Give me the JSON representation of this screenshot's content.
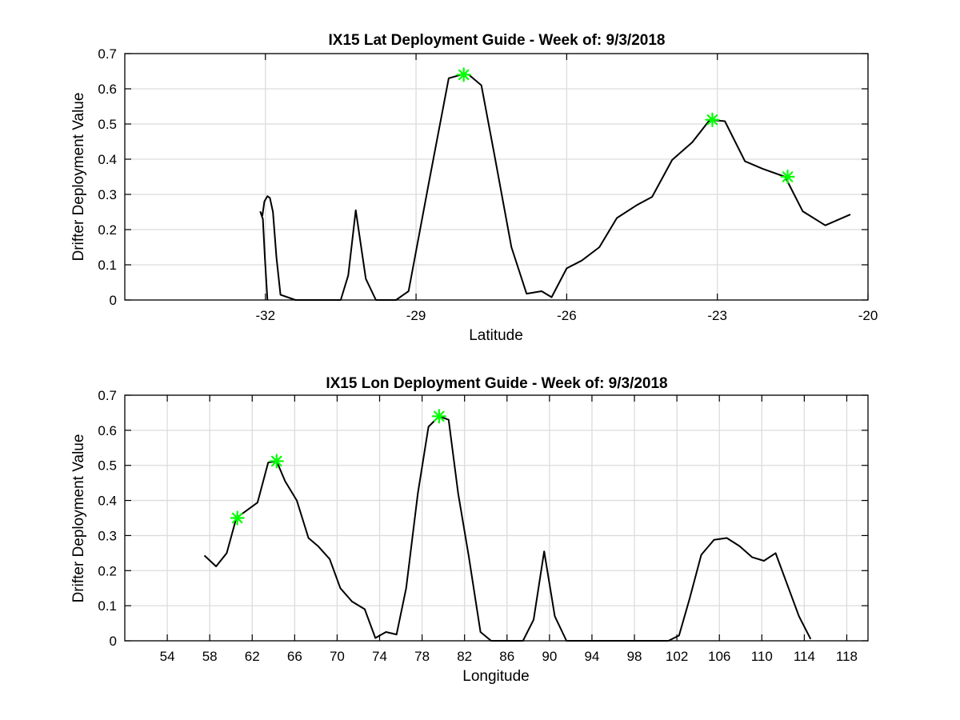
{
  "chart_data": [
    {
      "type": "line",
      "title": "IX15 Lat Deployment Guide - Week of: 9/3/2018",
      "xlabel": "Latitude",
      "ylabel": "Drifter Deployment Value",
      "xlim": [
        -34.8,
        -20
      ],
      "ylim": [
        0,
        0.7
      ],
      "xticks": [
        -32,
        -29,
        -26,
        -23,
        -20
      ],
      "xtick_labels": [
        "-32",
        "-29",
        "-26",
        "-23",
        "-20"
      ],
      "yticks": [
        0,
        0.1,
        0.2,
        0.3,
        0.4,
        0.5,
        0.6,
        0.7
      ],
      "ytick_labels": [
        "0",
        "0.1",
        "0.2",
        "0.3",
        "0.4",
        "0.5",
        "0.6",
        "0.7"
      ],
      "grid": true,
      "line_color": "#000000",
      "series": [
        {
          "x": [
            -31.96,
            -32.01,
            -32.05,
            -32.1,
            -32.06,
            -32.02,
            -31.96,
            -31.91,
            -31.85,
            -31.78,
            -31.7,
            -31.4,
            -30.9,
            -30.5,
            -30.35,
            -30.2,
            -30.0,
            -29.8,
            -29.4,
            -29.15,
            -28.75,
            -28.35,
            -28.1,
            -27.95,
            -27.7,
            -27.45,
            -27.1,
            -26.8,
            -26.5,
            -26.3,
            -26.0,
            -25.7,
            -25.35,
            -25.0,
            -24.6,
            -24.3,
            -23.9,
            -23.5,
            -23.15,
            -22.85,
            -22.45,
            -22.1,
            -21.65,
            -21.3,
            -20.85,
            -20.35
          ],
          "y": [
            0.0,
            0.12,
            0.23,
            0.25,
            0.24,
            0.28,
            0.295,
            0.29,
            0.25,
            0.12,
            0.015,
            0.0,
            0.0,
            0.0,
            0.07,
            0.255,
            0.06,
            0.0,
            0.0,
            0.025,
            0.33,
            0.63,
            0.64,
            0.64,
            0.61,
            0.42,
            0.15,
            0.018,
            0.025,
            0.008,
            0.09,
            0.112,
            0.15,
            0.233,
            0.27,
            0.293,
            0.398,
            0.448,
            0.512,
            0.508,
            0.394,
            0.373,
            0.35,
            0.252,
            0.212,
            0.243
          ]
        }
      ],
      "markers": {
        "symbol": "*",
        "color": "#00ff00",
        "points": [
          {
            "x": -28.05,
            "y": 0.64
          },
          {
            "x": -23.1,
            "y": 0.512
          },
          {
            "x": -21.6,
            "y": 0.35
          }
        ]
      }
    },
    {
      "type": "line",
      "title": "IX15 Lon Deployment Guide - Week of: 9/3/2018",
      "xlabel": "Longitude",
      "ylabel": "Drifter Deployment Value",
      "xlim": [
        50,
        120
      ],
      "ylim": [
        0,
        0.7
      ],
      "xticks": [
        54,
        58,
        62,
        66,
        70,
        74,
        78,
        82,
        86,
        90,
        94,
        98,
        102,
        106,
        110,
        114,
        118
      ],
      "xtick_labels": [
        "54",
        "58",
        "62",
        "66",
        "70",
        "74",
        "78",
        "82",
        "86",
        "90",
        "94",
        "98",
        "102",
        "106",
        "110",
        "114",
        "118"
      ],
      "yticks": [
        0,
        0.1,
        0.2,
        0.3,
        0.4,
        0.5,
        0.6,
        0.7
      ],
      "ytick_labels": [
        "0",
        "0.1",
        "0.2",
        "0.3",
        "0.4",
        "0.5",
        "0.6",
        "0.7"
      ],
      "grid": true,
      "line_color": "#000000",
      "series": [
        {
          "x": [
            57.5,
            58.6,
            59.6,
            60.5,
            62.5,
            63.5,
            64.3,
            65.1,
            66.2,
            67.3,
            68.2,
            69.3,
            70.3,
            71.4,
            72.6,
            73.6,
            74.6,
            75.6,
            76.5,
            77.6,
            78.6,
            79.6,
            80.5,
            81.4,
            82.4,
            83.5,
            84.5,
            85.5,
            86.5,
            87.5,
            88.5,
            89.5,
            90.5,
            91.6,
            92.5,
            93.5,
            95,
            100,
            101.2,
            102.2,
            103.2,
            104.3,
            105.5,
            106.7,
            107.9,
            109.1,
            110.2,
            111.3,
            112.4,
            113.5,
            114.6
          ],
          "y": [
            0.243,
            0.212,
            0.25,
            0.35,
            0.394,
            0.508,
            0.512,
            0.455,
            0.4,
            0.293,
            0.27,
            0.233,
            0.15,
            0.112,
            0.09,
            0.008,
            0.025,
            0.018,
            0.15,
            0.42,
            0.61,
            0.64,
            0.63,
            0.42,
            0.24,
            0.025,
            0.0,
            0.0,
            0.0,
            0.0,
            0.06,
            0.255,
            0.07,
            0.0,
            0.0,
            0.0,
            0.0,
            0.0,
            0.0,
            0.015,
            0.12,
            0.245,
            0.288,
            0.293,
            0.27,
            0.238,
            0.228,
            0.25,
            0.16,
            0.07,
            0.005
          ]
        }
      ],
      "markers": {
        "symbol": "*",
        "color": "#00ff00",
        "points": [
          {
            "x": 60.6,
            "y": 0.35
          },
          {
            "x": 64.3,
            "y": 0.512
          },
          {
            "x": 79.6,
            "y": 0.64
          }
        ]
      }
    }
  ]
}
